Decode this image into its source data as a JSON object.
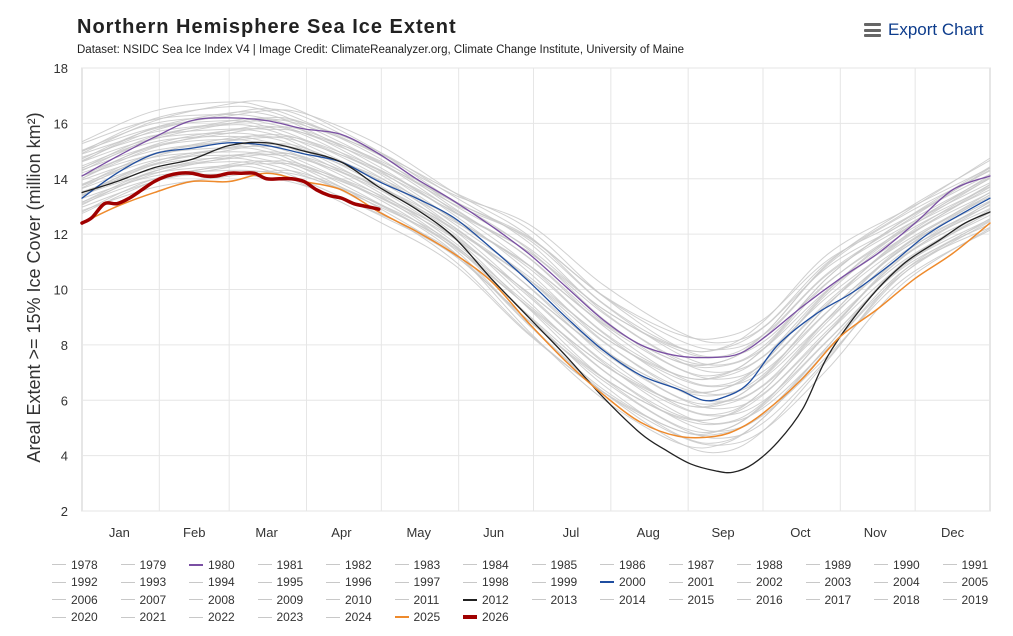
{
  "header": {
    "title": "Northern Hemisphere Sea Ice Extent",
    "subtitle": "Dataset: NSIDC Sea Ice Index V4 | Image Credit: ClimateReanalyzer.org, Climate Change Institute, University of Maine",
    "export_label": "Export Chart",
    "export_icon": "menu-icon"
  },
  "chart_data": {
    "type": "line",
    "title": "Northern Hemisphere Sea Ice Extent",
    "ylabel": "Areal Extent >= 15% Ice Cover (million km²)",
    "ylim": [
      2,
      18
    ],
    "yticks": [
      2,
      4,
      6,
      8,
      10,
      12,
      14,
      16,
      18
    ],
    "xlim": [
      1,
      365
    ],
    "month_labels": [
      "Jan",
      "Feb",
      "Mar",
      "Apr",
      "May",
      "Jun",
      "Jul",
      "Aug",
      "Sep",
      "Oct",
      "Nov",
      "Dec"
    ],
    "month_centers_day": [
      16,
      46,
      75,
      105,
      136,
      166,
      197,
      228,
      258,
      289,
      319,
      350
    ],
    "grid": true,
    "legend_position": "bottom",
    "default_color": "#c8c8c8",
    "series": [
      {
        "name": "1980",
        "color": "#7a4fa3",
        "width": 1.3,
        "x": [
          1,
          15,
          30,
          45,
          60,
          75,
          90,
          105,
          120,
          135,
          150,
          165,
          180,
          195,
          210,
          225,
          240,
          255,
          265,
          275,
          290,
          305,
          320,
          335,
          350,
          365
        ],
        "y": [
          14.1,
          14.8,
          15.5,
          16.1,
          16.2,
          16.1,
          15.8,
          15.6,
          14.9,
          14.0,
          13.2,
          12.3,
          11.3,
          10.1,
          8.9,
          8.0,
          7.6,
          7.55,
          7.7,
          8.3,
          9.4,
          10.4,
          11.3,
          12.4,
          13.6,
          14.1
        ]
      },
      {
        "name": "2000",
        "color": "#1f4ea0",
        "width": 1.3,
        "x": [
          1,
          15,
          30,
          45,
          60,
          75,
          90,
          105,
          120,
          135,
          150,
          165,
          180,
          195,
          210,
          225,
          240,
          250,
          258,
          268,
          280,
          295,
          310,
          325,
          340,
          355,
          365
        ],
        "y": [
          13.3,
          14.2,
          14.9,
          15.1,
          15.3,
          15.2,
          14.9,
          14.6,
          13.9,
          13.3,
          12.6,
          11.5,
          10.3,
          9.0,
          7.8,
          6.9,
          6.4,
          6.0,
          6.1,
          6.6,
          8.0,
          9.1,
          9.9,
          10.9,
          12.0,
          12.8,
          13.3
        ]
      },
      {
        "name": "2012",
        "color": "#222222",
        "width": 1.3,
        "x": [
          1,
          15,
          30,
          45,
          60,
          75,
          90,
          105,
          120,
          135,
          150,
          165,
          180,
          195,
          210,
          225,
          235,
          245,
          255,
          262,
          270,
          280,
          290,
          300,
          315,
          330,
          345,
          355,
          365
        ],
        "y": [
          13.5,
          13.9,
          14.4,
          14.7,
          15.2,
          15.3,
          15.0,
          14.6,
          13.7,
          12.9,
          11.9,
          10.4,
          9.0,
          7.6,
          6.1,
          4.8,
          4.2,
          3.7,
          3.45,
          3.4,
          3.7,
          4.5,
          5.7,
          7.6,
          9.5,
          10.9,
          11.8,
          12.4,
          12.8
        ]
      },
      {
        "name": "2025",
        "color": "#ee8a2c",
        "width": 1.5,
        "x": [
          1,
          15,
          30,
          45,
          60,
          75,
          90,
          105,
          120,
          135,
          150,
          165,
          180,
          195,
          210,
          225,
          240,
          255,
          265,
          275,
          290,
          305,
          320,
          335,
          350,
          365
        ],
        "y": [
          12.4,
          13.0,
          13.5,
          13.9,
          13.9,
          14.2,
          13.9,
          13.6,
          12.8,
          12.1,
          11.3,
          10.3,
          8.8,
          7.4,
          6.2,
          5.2,
          4.7,
          4.7,
          5.0,
          5.6,
          6.8,
          8.3,
          9.3,
          10.4,
          11.3,
          12.4
        ]
      },
      {
        "name": "2026",
        "color": "#a00000",
        "width": 3.5,
        "x": [
          1,
          5,
          10,
          15,
          20,
          25,
          30,
          35,
          40,
          45,
          50,
          55,
          60,
          65,
          70,
          75,
          80,
          85,
          90,
          95,
          100,
          105,
          110,
          115,
          120
        ],
        "y": [
          12.4,
          12.6,
          13.1,
          13.1,
          13.3,
          13.6,
          13.9,
          14.1,
          14.2,
          14.2,
          14.1,
          14.1,
          14.2,
          14.2,
          14.2,
          14.0,
          14.0,
          14.0,
          13.9,
          13.6,
          13.4,
          13.3,
          13.1,
          13.0,
          12.9
        ]
      }
    ],
    "legend": [
      "1978",
      "1979",
      "1980",
      "1981",
      "1982",
      "1983",
      "1984",
      "1985",
      "1986",
      "1987",
      "1988",
      "1989",
      "1990",
      "1991",
      "1992",
      "1993",
      "1994",
      "1995",
      "1996",
      "1997",
      "1998",
      "1999",
      "2000",
      "2001",
      "2002",
      "2003",
      "2004",
      "2005",
      "2006",
      "2007",
      "2008",
      "2009",
      "2010",
      "2011",
      "2012",
      "2013",
      "2014",
      "2015",
      "2016",
      "2017",
      "2018",
      "2019",
      "2020",
      "2021",
      "2022",
      "2023",
      "2024",
      "2025",
      "2026"
    ],
    "legend_colors": {
      "1980": "#7a4fa3",
      "2000": "#1f4ea0",
      "2012": "#222222",
      "2025": "#ee8a2c",
      "2026": "#a00000"
    }
  }
}
